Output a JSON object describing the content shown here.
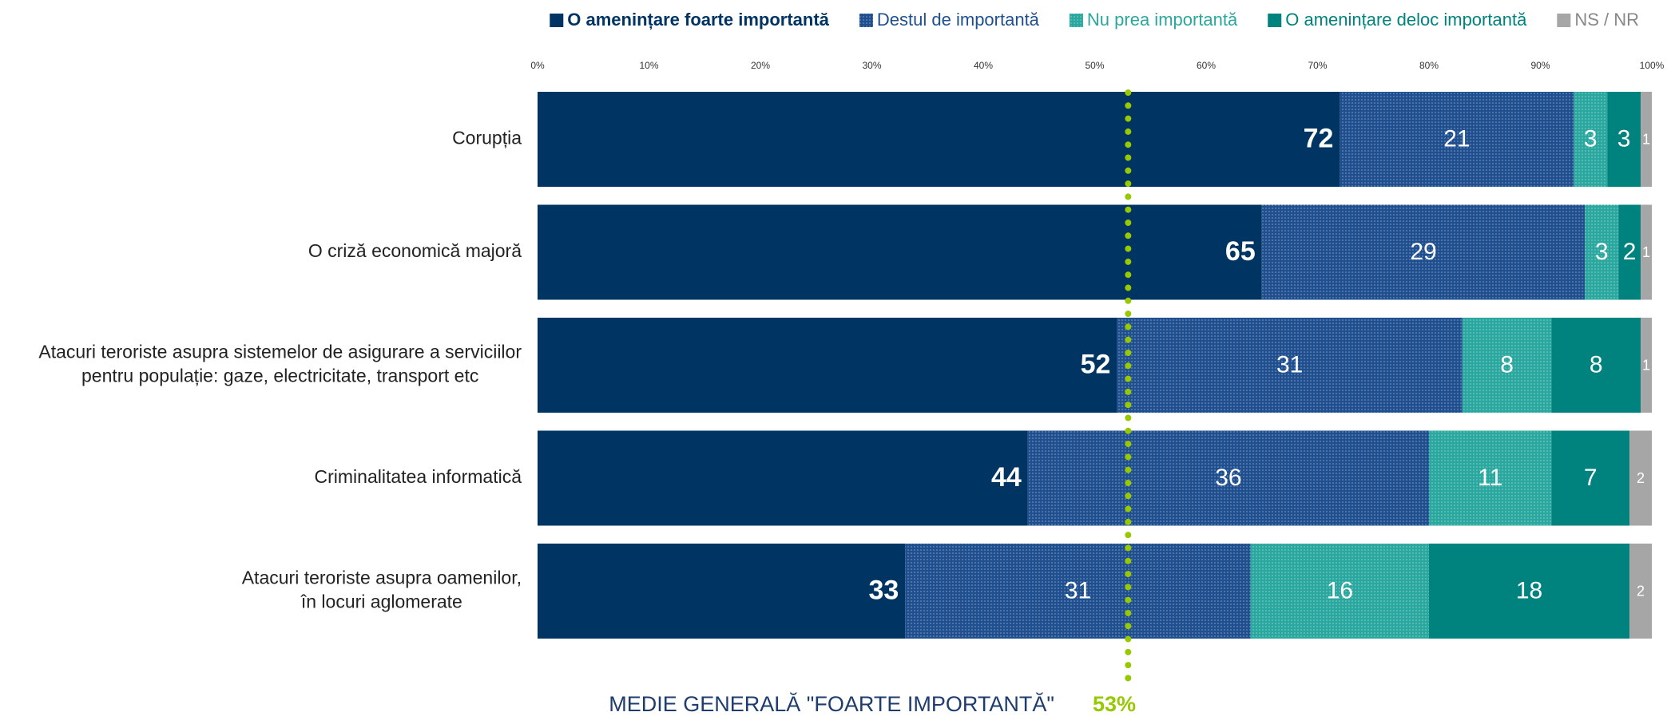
{
  "chart_data": {
    "type": "stacked-bar-horizontal",
    "categories": [
      "Corupția",
      "O criză economică majoră",
      "Atacuri teroriste asupra sistemelor de asigurare a serviciilor\npentru populație: gaze, electricitate, transport etc",
      "Criminalitatea informatică",
      "Atacuri teroriste asupra oamenilor,\nîn locuri aglomerate"
    ],
    "series": [
      {
        "name": "O amenințare foarte importantă",
        "color": "#003462",
        "values": [
          72,
          65,
          52,
          44,
          33
        ]
      },
      {
        "name": "Destul de importantă",
        "color": "#1f4f8f",
        "pattern": true,
        "values": [
          21,
          29,
          31,
          36,
          31
        ]
      },
      {
        "name": "Nu prea importantă",
        "color": "#2aa79e",
        "pattern": true,
        "values": [
          3,
          3,
          8,
          11,
          16
        ]
      },
      {
        "name": "O amenințare deloc importantă",
        "color": "#00837e",
        "values": [
          3,
          2,
          8,
          7,
          18
        ]
      },
      {
        "name": "NS / NR",
        "color": "#a6a6a6",
        "values": [
          1,
          1,
          1,
          2,
          2
        ]
      }
    ],
    "xlim": [
      0,
      100
    ],
    "xticks": [
      {
        "value": 0,
        "label": "0%"
      },
      {
        "value": 10,
        "label": "10%"
      },
      {
        "value": 20,
        "label": "20%"
      },
      {
        "value": 30,
        "label": "30%"
      },
      {
        "value": 40,
        "label": "40%"
      },
      {
        "value": 50,
        "label": "50%"
      },
      {
        "value": 60,
        "label": "60%"
      },
      {
        "value": 70,
        "label": "70%"
      },
      {
        "value": 80,
        "label": "80%"
      },
      {
        "value": 90,
        "label": "90%"
      },
      {
        "value": 100,
        "label": "100%"
      }
    ],
    "average": {
      "value": 53,
      "label": "53%",
      "color": "#97c800"
    },
    "annotation": "MEDIE GENERALĂ \"FOARTE IMPORTANTĂ\"",
    "legend": "top-right"
  }
}
